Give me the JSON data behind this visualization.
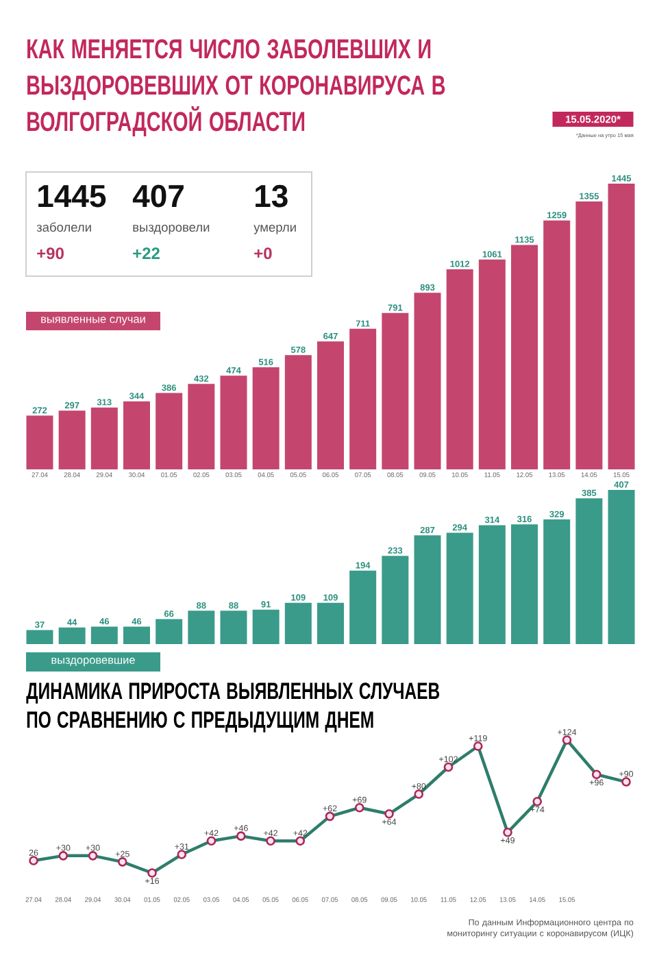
{
  "chart_data": [
    {
      "type": "other",
      "title": "КАК МЕНЯЕТСЯ ЧИСЛО ЗАБОЛЕВШИХ И ВЫЗДОРОВЕВШИХ ОТ КОРОНАВИРУСА В ВОЛГОГРАДСКОЙ ОБЛАСТИ",
      "subtitle": "15.05.2020*",
      "annotations": [
        "*Данные на утро 15 мая"
      ],
      "categories": [
        "заболели",
        "выздоровели",
        "умерли"
      ],
      "series": [
        {
          "color": "#111111",
          "values": [
            1445,
            407,
            13
          ]
        },
        {
          "colors": [
            "#b8325f",
            "#2a9a80",
            "#b8325f"
          ],
          "values": [
            90,
            22,
            0
          ],
          "value_labels": [
            "+90",
            "+22",
            "+0"
          ]
        }
      ],
      "data_labels": true
    },
    {
      "type": "bar",
      "title": "выявленные случаи",
      "categories": [
        "27.04",
        "28.04",
        "29.04",
        "30.04",
        "01.05",
        "02.05",
        "03.05",
        "04.05",
        "05.05",
        "06.05",
        "07.05",
        "08.05",
        "09.05",
        "10.05",
        "11.05",
        "12.05",
        "13.05",
        "14.05",
        "15.05"
      ],
      "series": [
        {
          "color": "#c4466e",
          "values": [
            272,
            297,
            313,
            344,
            386,
            432,
            474,
            516,
            578,
            647,
            711,
            791,
            893,
            1012,
            1061,
            1135,
            1259,
            1355,
            1445
          ]
        }
      ],
      "ylim": [
        0,
        1445
      ],
      "data_labels": true,
      "tick_labels": "x"
    },
    {
      "type": "bar",
      "title": "выздоровевшие",
      "categories": [
        "27.04",
        "28.04",
        "29.04",
        "30.04",
        "01.05",
        "02.05",
        "03.05",
        "04.05",
        "05.05",
        "06.05",
        "07.05",
        "08.05",
        "09.05",
        "10.05",
        "11.05",
        "12.05",
        "13.05",
        "14.05",
        "15.05"
      ],
      "series": [
        {
          "color": "#3a9b8a",
          "values": [
            37,
            44,
            46,
            46,
            66,
            88,
            88,
            91,
            109,
            109,
            194,
            233,
            287,
            294,
            314,
            316,
            329,
            385,
            407
          ]
        }
      ],
      "ylim": [
        0,
        407
      ],
      "data_labels": true,
      "tick_labels": false
    },
    {
      "type": "line",
      "title": "ДИНАМИКА ПРИРОСТА ВЫЯВЛЕННЫХ СЛУЧАЕВ ПО СРАВНЕНИЮ С ПРЕДЫДУЩИМ ДНЕМ",
      "categories": [
        "27.04",
        "28.04",
        "29.04",
        "30.04",
        "01.05",
        "02.05",
        "03.05",
        "04.05",
        "05.05",
        "06.05",
        "07.05",
        "08.05",
        "09.05",
        "10.05",
        "11.05",
        "12.05",
        "13.05",
        "14.05",
        "15.05",
        null,
        null
      ],
      "series": [
        {
          "color": "#2e7d6b",
          "values": [
            26,
            30,
            30,
            25,
            16,
            31,
            42,
            46,
            42,
            42,
            62,
            69,
            64,
            80,
            102,
            119,
            49,
            74,
            124,
            96,
            90
          ],
          "value_labels": [
            "26",
            "+30",
            "+30",
            "+25",
            "+16",
            "+31",
            "+42",
            "+46",
            "+42",
            "+42",
            "+62",
            "+69",
            "+64",
            "+80",
            "+102",
            "+119",
            "+49",
            "+74",
            "+124",
            "+96",
            "+90"
          ]
        }
      ],
      "marker": "circle",
      "line_style": "solid",
      "tick_labels": "x",
      "annotations": [
        "По данным Информационного центра по мониторингу ситуации с коронавирусом (ИЦК)"
      ]
    }
  ]
}
